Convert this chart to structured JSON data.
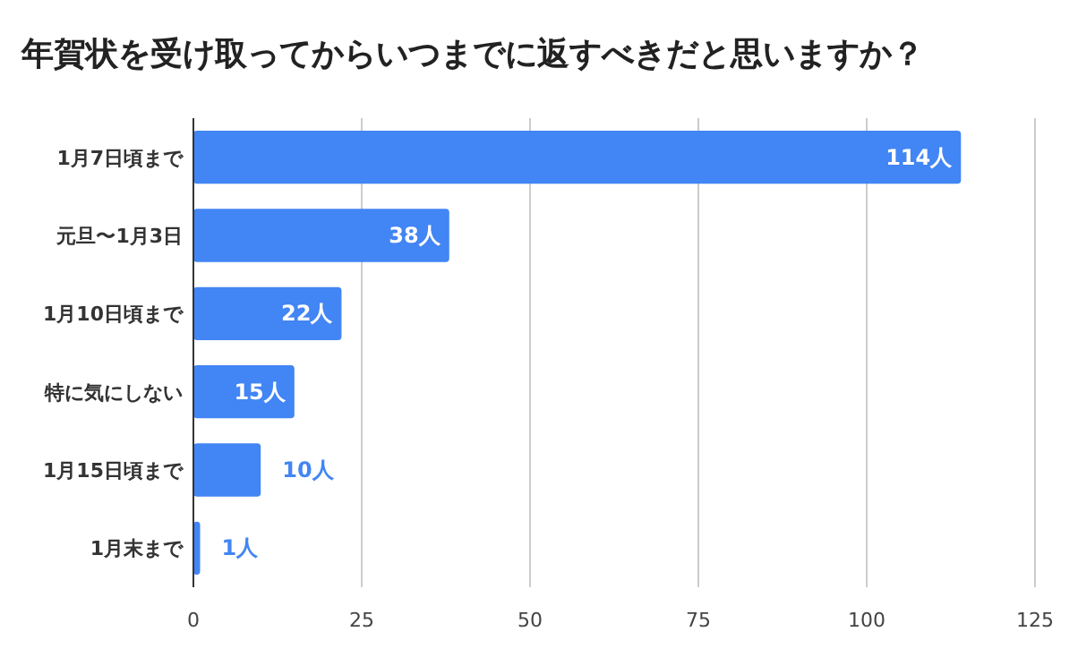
{
  "chart_data": {
    "type": "bar",
    "orientation": "horizontal",
    "title": "年賀状を受け取ってからいつまでに返すべきだと思いますか？",
    "categories": [
      "1月7日頃まで",
      "元旦〜1月3日",
      "1月10日頃まで",
      "特に気にしない",
      "1月15日頃まで",
      "1月末まで"
    ],
    "values": [
      114,
      38,
      22,
      15,
      10,
      1
    ],
    "value_labels": [
      "114人",
      "38人",
      "22人",
      "15人",
      "10人",
      "1人"
    ],
    "color": "#4285f4",
    "xlim": [
      0,
      125
    ],
    "xticks": [
      0,
      25,
      50,
      75,
      100,
      125
    ],
    "grid": "x"
  }
}
